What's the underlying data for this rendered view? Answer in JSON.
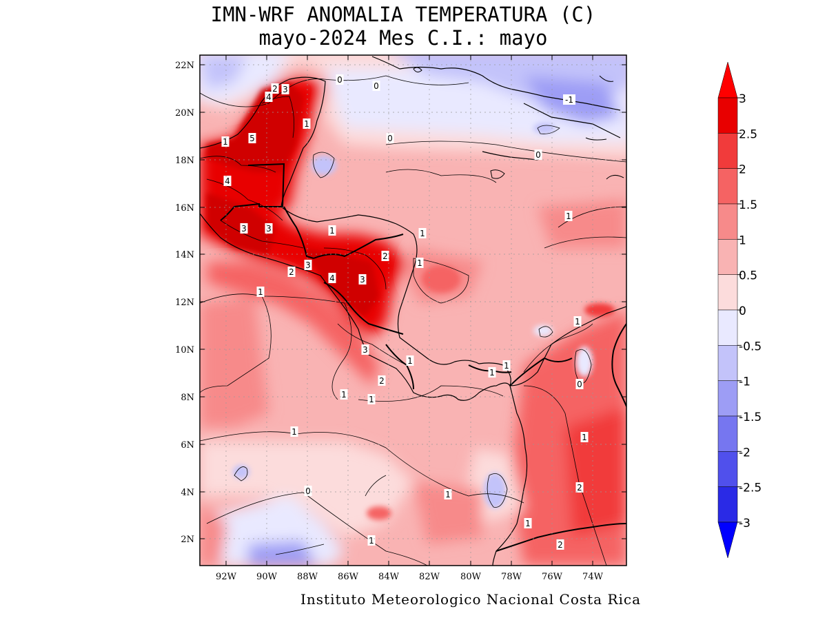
{
  "title_line1": "IMN-WRF  ANOMALIA TEMPERATURA (C)",
  "title_line2": "mayo-2024 Mes C.I.: mayo",
  "credit": "Instituto Meteorologico Nacional Costa Rica",
  "lat_ticks": [
    "22N",
    "20N",
    "18N",
    "16N",
    "14N",
    "12N",
    "10N",
    "8N",
    "6N",
    "4N",
    "2N"
  ],
  "lon_ticks": [
    "92W",
    "90W",
    "88W",
    "86W",
    "84W",
    "82W",
    "80W",
    "78W",
    "76W",
    "74W"
  ],
  "colorbar": {
    "labels": [
      "3",
      "2.5",
      "2",
      "1.5",
      "1",
      "0.5",
      "0",
      "-0.5",
      "-1",
      "-1.5",
      "-2",
      "-2.5",
      "-3"
    ],
    "colors": [
      "#e80000",
      "#f13b3b",
      "#f56363",
      "#f78a8a",
      "#f9b3b3",
      "#fcdcdc",
      "#e9e9ff",
      "#c3c3fa",
      "#9d9df5",
      "#7676f0",
      "#5050ec",
      "#2a2ae6"
    ],
    "top_arrow_color": "#ff0000",
    "bottom_arrow_color": "#0000ff"
  },
  "contour_labels": [
    {
      "text": "0"
    },
    {
      "text": "0"
    },
    {
      "text": "0"
    },
    {
      "text": "0"
    },
    {
      "text": "-1"
    },
    {
      "text": "4"
    },
    {
      "text": "2"
    },
    {
      "text": "3"
    },
    {
      "text": "1"
    },
    {
      "text": "1"
    },
    {
      "text": "5"
    },
    {
      "text": "4"
    },
    {
      "text": "3"
    },
    {
      "text": "3"
    },
    {
      "text": "1"
    },
    {
      "text": "1"
    },
    {
      "text": "1"
    },
    {
      "text": "2"
    },
    {
      "text": "3"
    },
    {
      "text": "2"
    },
    {
      "text": "4"
    },
    {
      "text": "3"
    },
    {
      "text": "1"
    },
    {
      "text": "1"
    },
    {
      "text": "3"
    },
    {
      "text": "1"
    },
    {
      "text": "2"
    },
    {
      "text": "1"
    },
    {
      "text": "1"
    },
    {
      "text": "1"
    },
    {
      "text": "1"
    },
    {
      "text": "1"
    },
    {
      "text": "0"
    },
    {
      "text": "1"
    },
    {
      "text": "1"
    },
    {
      "text": "0"
    },
    {
      "text": "1"
    },
    {
      "text": "2"
    },
    {
      "text": "1"
    },
    {
      "text": "1"
    },
    {
      "text": "2"
    }
  ]
}
